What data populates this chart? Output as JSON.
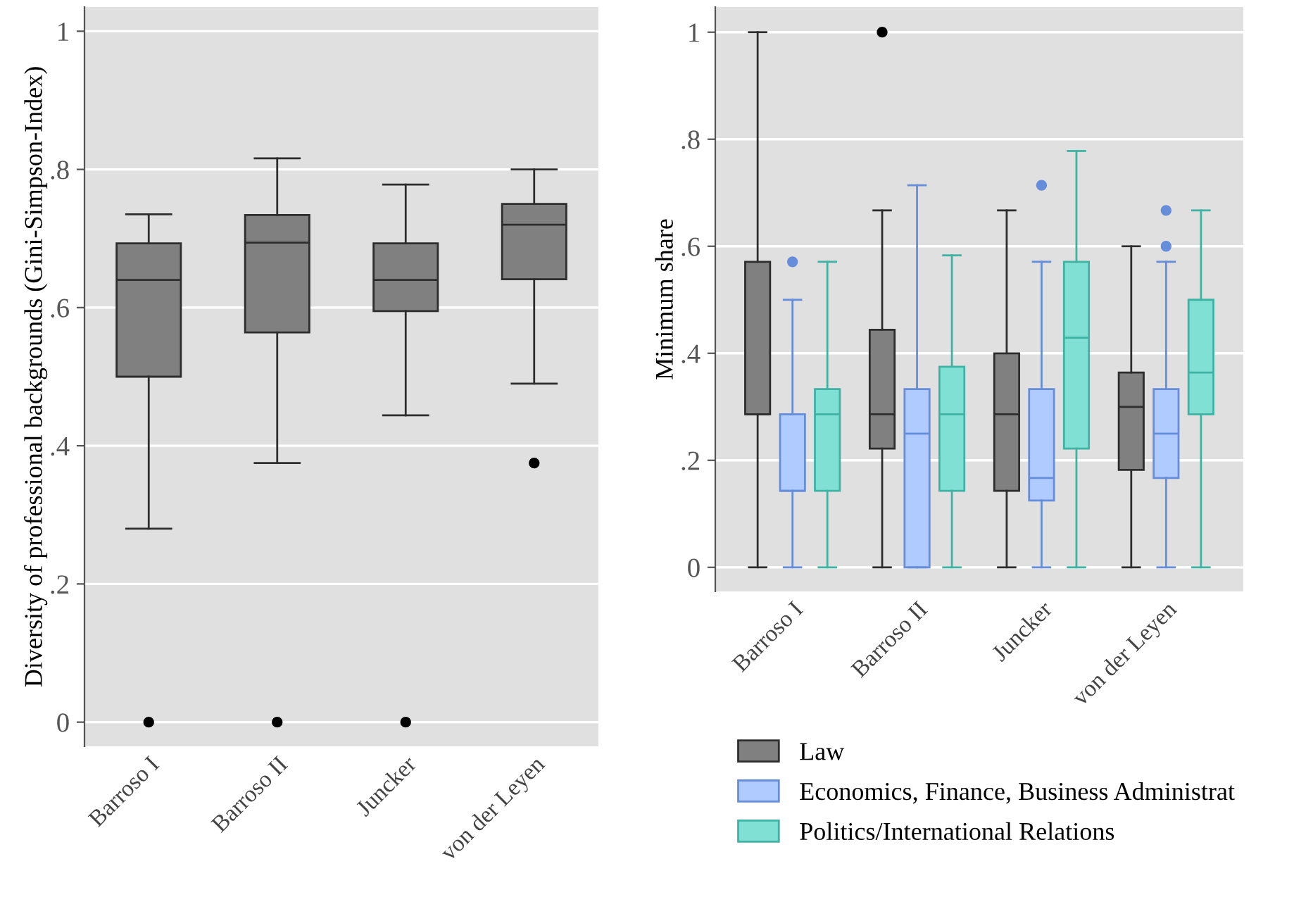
{
  "chart_data": [
    {
      "type": "box",
      "categories": [
        "Barroso I",
        "Barroso II",
        "Juncker",
        "von der Leyen"
      ],
      "ylabel": "Diversity of professional backgrounds (Gini-Simpson-Index)",
      "ylim": [
        -0.035,
        1.035
      ],
      "yticks": [
        0,
        {
          "value": 0.2,
          "label": ".2"
        },
        {
          "value": 0.4,
          "label": ".4"
        },
        {
          "value": 0.6,
          "label": ".6"
        },
        {
          "value": 0.8,
          "label": ".8"
        },
        1
      ],
      "grid": "y",
      "legend": false,
      "series": [
        {
          "color": "#808080",
          "boxes": [
            {
              "low": 0.28,
              "q1": 0.5,
              "median": 0.64,
              "q3": 0.693,
              "high": 0.735,
              "outliers": [
                0
              ]
            },
            {
              "low": 0.375,
              "q1": 0.564,
              "median": 0.694,
              "q3": 0.734,
              "high": 0.816,
              "outliers": [
                0
              ]
            },
            {
              "low": 0.444,
              "q1": 0.595,
              "median": 0.64,
              "q3": 0.693,
              "high": 0.778,
              "outliers": [
                0
              ]
            },
            {
              "low": 0.49,
              "q1": 0.641,
              "median": 0.72,
              "q3": 0.75,
              "high": 0.8,
              "outliers": [
                0.375
              ]
            }
          ]
        }
      ]
    },
    {
      "type": "box",
      "categories": [
        "Barroso I",
        "Barroso II",
        "Juncker",
        "von der Leyen"
      ],
      "ylabel": "Minimum share",
      "ylim": [
        -0.045,
        1.047
      ],
      "yticks": [
        0,
        {
          "value": 0.2,
          "label": ".2"
        },
        {
          "value": 0.4,
          "label": ".4"
        },
        {
          "value": 0.6,
          "label": ".6"
        },
        {
          "value": 0.8,
          "label": ".8"
        },
        1
      ],
      "grid": "y",
      "legend": "bottom",
      "series": [
        {
          "name": "Law",
          "color": "#808080",
          "boxes": [
            {
              "low": 0,
              "q1": 0.286,
              "median": 0.286,
              "q3": 0.571,
              "high": 1
            },
            {
              "low": 0,
              "q1": 0.222,
              "median": 0.286,
              "q3": 0.444,
              "high": 0.667,
              "outliers": [
                1
              ]
            },
            {
              "low": 0,
              "q1": 0.143,
              "median": 0.286,
              "q3": 0.4,
              "high": 0.667
            },
            {
              "low": 0,
              "q1": 0.182,
              "median": 0.3,
              "q3": 0.364,
              "high": 0.6
            }
          ]
        },
        {
          "name": "Economics, Finance, Business Administrat",
          "color": "#b0cbff",
          "boxes": [
            {
              "low": 0,
              "q1": 0.143,
              "median": 0.143,
              "q3": 0.286,
              "high": 0.5,
              "outliers": [
                0.571
              ]
            },
            {
              "low": 0,
              "q1": 0,
              "median": 0.25,
              "q3": 0.333,
              "high": 0.714
            },
            {
              "low": 0,
              "q1": 0.125,
              "median": 0.167,
              "q3": 0.333,
              "high": 0.571,
              "outliers": [
                0.714
              ]
            },
            {
              "low": 0,
              "q1": 0.167,
              "median": 0.25,
              "q3": 0.333,
              "high": 0.571,
              "outliers": [
                0.6,
                0.667
              ]
            }
          ]
        },
        {
          "name": "Politics/International Relations",
          "color": "#80e0d4",
          "boxes": [
            {
              "low": 0,
              "q1": 0.143,
              "median": 0.286,
              "q3": 0.333,
              "high": 0.571
            },
            {
              "low": 0,
              "q1": 0.143,
              "median": 0.286,
              "q3": 0.375,
              "high": 0.583
            },
            {
              "low": 0,
              "q1": 0.222,
              "median": 0.429,
              "q3": 0.571,
              "high": 0.778
            },
            {
              "low": 0,
              "q1": 0.286,
              "median": 0.364,
              "q3": 0.5,
              "high": 0.667
            }
          ]
        }
      ]
    }
  ]
}
